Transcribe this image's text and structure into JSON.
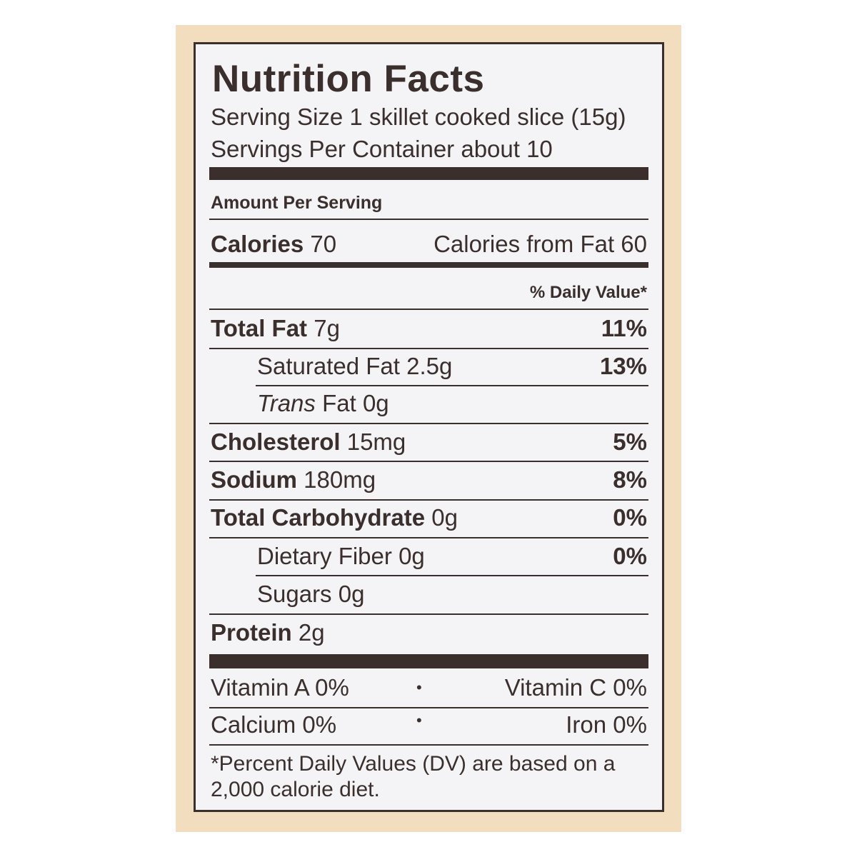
{
  "title": "Nutrition Facts",
  "serving_size": "Serving Size 1 skillet cooked slice (15g)",
  "servings_per_container": "Servings Per Container about 10",
  "amount_per_serving": "Amount Per Serving",
  "calories": {
    "label": "Calories",
    "value": "70",
    "from_fat": "Calories from Fat 60"
  },
  "daily_value_header": "% Daily Value*",
  "nutrients": [
    {
      "label": "Total Fat",
      "amount": "7g",
      "dv": "11%"
    },
    {
      "label": "Saturated Fat",
      "amount": "2.5g",
      "dv": "13%"
    },
    {
      "label": "Trans",
      "label_rest": "Fat",
      "amount": "0g",
      "dv": ""
    },
    {
      "label": "Cholesterol",
      "amount": "15mg",
      "dv": "5%"
    },
    {
      "label": "Sodium",
      "amount": "180mg",
      "dv": "8%"
    },
    {
      "label": "Total Carbohydrate",
      "amount": "0g",
      "dv": "0%"
    },
    {
      "label": "Dietary Fiber",
      "amount": "0g",
      "dv": "0%"
    },
    {
      "label": "Sugars",
      "amount": "0g",
      "dv": ""
    },
    {
      "label": "Protein",
      "amount": "2g",
      "dv": ""
    }
  ],
  "vitamins": {
    "vitamin_a": "Vitamin A 0%",
    "vitamin_c": "Vitamin C 0%",
    "calcium": "Calcium 0%",
    "iron": "Iron 0%",
    "separator": "•"
  },
  "footnote": {
    "line1": "*Percent Daily Values (DV) are based on a",
    "line2": "2,000 calorie diet."
  },
  "colors": {
    "ink": "#3a2f2d",
    "background": "#f3ddbf",
    "label": "#f4f4f6"
  }
}
